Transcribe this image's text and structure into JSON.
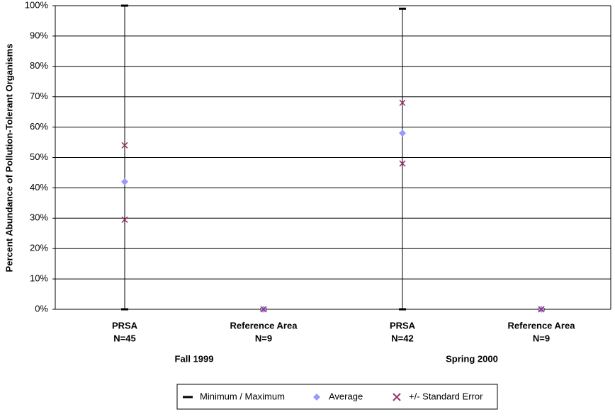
{
  "chart_data": {
    "type": "range",
    "y_label": "Percent Abundance of Pollution-Tolerant Organisms",
    "categories": [
      "PRSA",
      "Reference Area",
      "PRSA",
      "Reference Area"
    ],
    "sample_sizes": [
      "N=45",
      "N=9",
      "N=42",
      "N=9"
    ],
    "group_labels": [
      "Fall 1999",
      "Spring 2000"
    ],
    "ylim": [
      0,
      100
    ],
    "yticks": [
      {
        "value": 0,
        "label": "0%"
      },
      {
        "value": 10,
        "label": "10%"
      },
      {
        "value": 20,
        "label": "20%"
      },
      {
        "value": 30,
        "label": "30%"
      },
      {
        "value": 40,
        "label": "40%"
      },
      {
        "value": 50,
        "label": "50%"
      },
      {
        "value": 60,
        "label": "60%"
      },
      {
        "value": 70,
        "label": "70%"
      },
      {
        "value": 80,
        "label": "80%"
      },
      {
        "value": 90,
        "label": "90%"
      },
      {
        "value": 100,
        "label": "100%"
      }
    ],
    "grid": true,
    "series": [
      {
        "name": "Minimum / Maximum",
        "color": "#000000",
        "marker": "dash",
        "low": [
          0,
          0,
          0,
          0
        ],
        "high": [
          100,
          0,
          99,
          0
        ]
      },
      {
        "name": "Average",
        "color": "#9999ff",
        "marker": "diamond",
        "values": [
          42,
          0,
          58,
          0
        ]
      },
      {
        "name": "+/- Standard Error",
        "color": "#993366",
        "marker": "x",
        "low": [
          29.5,
          0,
          48,
          0
        ],
        "high": [
          54,
          0,
          68,
          0
        ]
      }
    ]
  }
}
